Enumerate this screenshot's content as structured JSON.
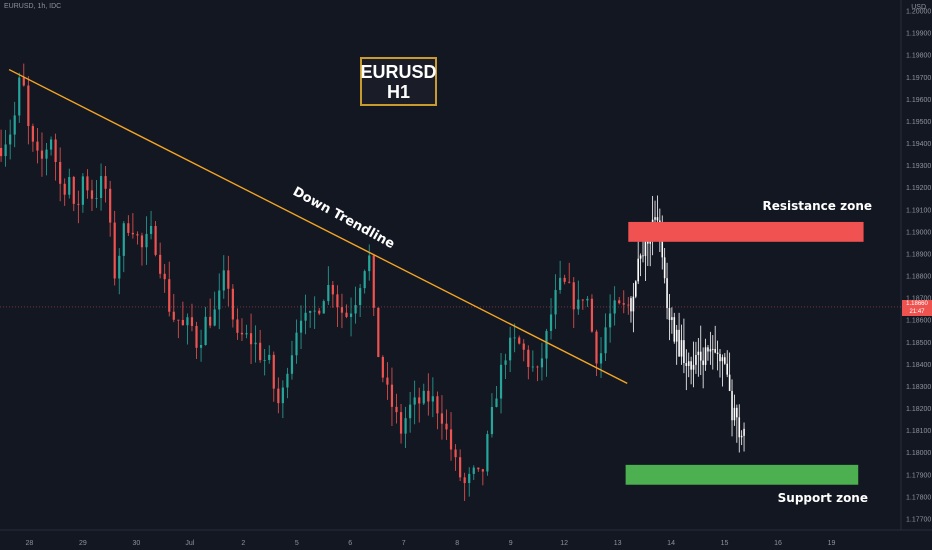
{
  "header": {
    "ticker": "EURUSD, 1h, IDC",
    "axis_unit": "USD"
  },
  "symbol_box": {
    "symbol": "EURUSD",
    "timeframe": "H1"
  },
  "price_tag": {
    "price": "1.18660",
    "countdown": "21:47"
  },
  "annotations": {
    "trendline_label": "Down Trendline",
    "resistance_label": "Resistance zone",
    "support_label": "Support zone"
  },
  "colors": {
    "background": "#131722",
    "bull": "#26a69a",
    "bear": "#ef5350",
    "trendline": "#f5a623",
    "resistance": "#f05252",
    "support": "#4caf50",
    "projection": "#ffffff"
  },
  "chart_data": {
    "type": "candlestick",
    "title": "EURUSD, 1h, IDC",
    "xlabel": "",
    "ylabel": "USD",
    "y_ticks": [
      "1.17700",
      "1.17800",
      "1.17900",
      "1.18000",
      "1.18100",
      "1.18200",
      "1.18300",
      "1.18400",
      "1.18500",
      "1.18600",
      "1.18700",
      "1.18800",
      "1.18900",
      "1.19000",
      "1.19100",
      "1.19200",
      "1.19300",
      "1.19400",
      "1.19500",
      "1.19600",
      "1.19700",
      "1.19800",
      "1.19900",
      "1.20000"
    ],
    "x_ticks": [
      {
        "label": "28",
        "day": 28
      },
      {
        "label": "29",
        "day": 29
      },
      {
        "label": "30",
        "day": 30
      },
      {
        "label": "Jul",
        "day": 31
      },
      {
        "label": "2",
        "day": 32
      },
      {
        "label": "5",
        "day": 33
      },
      {
        "label": "6",
        "day": 34
      },
      {
        "label": "7",
        "day": 35
      },
      {
        "label": "8",
        "day": 36
      },
      {
        "label": "9",
        "day": 37
      },
      {
        "label": "12",
        "day": 38
      },
      {
        "label": "13",
        "day": 39
      },
      {
        "label": "14",
        "day": 40
      },
      {
        "label": "15",
        "day": 41
      },
      {
        "label": "16",
        "day": 42
      },
      {
        "label": "19",
        "day": 43
      }
    ],
    "ylim": [
      1.1765,
      1.2005
    ],
    "xlim": [
      27.45,
      44.3
    ],
    "current_price": 1.1866,
    "price_path": [
      {
        "day": 27.45,
        "price": 1.1938
      },
      {
        "day": 27.7,
        "price": 1.1948
      },
      {
        "day": 27.85,
        "price": 1.1974
      },
      {
        "day": 28.0,
        "price": 1.1942
      },
      {
        "day": 28.2,
        "price": 1.193
      },
      {
        "day": 28.4,
        "price": 1.1944
      },
      {
        "day": 28.6,
        "price": 1.1918
      },
      {
        "day": 28.75,
        "price": 1.1925
      },
      {
        "day": 28.85,
        "price": 1.1905
      },
      {
        "day": 29.0,
        "price": 1.1925
      },
      {
        "day": 29.2,
        "price": 1.1915
      },
      {
        "day": 29.4,
        "price": 1.1925
      },
      {
        "day": 29.6,
        "price": 1.188
      },
      {
        "day": 29.75,
        "price": 1.19
      },
      {
        "day": 29.9,
        "price": 1.1905
      },
      {
        "day": 30.1,
        "price": 1.1892
      },
      {
        "day": 30.3,
        "price": 1.19
      },
      {
        "day": 30.5,
        "price": 1.188
      },
      {
        "day": 30.65,
        "price": 1.1862
      },
      {
        "day": 30.8,
        "price": 1.186
      },
      {
        "day": 30.9,
        "price": 1.1855
      },
      {
        "day": 31.0,
        "price": 1.186
      },
      {
        "day": 31.15,
        "price": 1.1848
      },
      {
        "day": 31.3,
        "price": 1.186
      },
      {
        "day": 31.45,
        "price": 1.1862
      },
      {
        "day": 31.55,
        "price": 1.187
      },
      {
        "day": 31.65,
        "price": 1.188
      },
      {
        "day": 31.75,
        "price": 1.1875
      },
      {
        "day": 31.85,
        "price": 1.185
      },
      {
        "day": 32.0,
        "price": 1.1853
      },
      {
        "day": 32.2,
        "price": 1.185
      },
      {
        "day": 32.35,
        "price": 1.1843
      },
      {
        "day": 32.5,
        "price": 1.184
      },
      {
        "day": 32.6,
        "price": 1.1825
      },
      {
        "day": 32.7,
        "price": 1.182
      },
      {
        "day": 32.8,
        "price": 1.1838
      },
      {
        "day": 32.95,
        "price": 1.185
      },
      {
        "day": 33.05,
        "price": 1.1865
      },
      {
        "day": 33.2,
        "price": 1.1858
      },
      {
        "day": 33.4,
        "price": 1.1866
      },
      {
        "day": 33.5,
        "price": 1.1872
      },
      {
        "day": 33.65,
        "price": 1.1877
      },
      {
        "day": 33.8,
        "price": 1.1865
      },
      {
        "day": 33.95,
        "price": 1.1862
      },
      {
        "day": 34.1,
        "price": 1.187
      },
      {
        "day": 34.25,
        "price": 1.1884
      },
      {
        "day": 34.35,
        "price": 1.189
      },
      {
        "day": 34.4,
        "price": 1.187
      },
      {
        "day": 34.5,
        "price": 1.1848
      },
      {
        "day": 34.65,
        "price": 1.183
      },
      {
        "day": 34.8,
        "price": 1.182
      },
      {
        "day": 34.95,
        "price": 1.181
      },
      {
        "day": 35.1,
        "price": 1.182
      },
      {
        "day": 35.3,
        "price": 1.1823
      },
      {
        "day": 35.5,
        "price": 1.1825
      },
      {
        "day": 35.7,
        "price": 1.1818
      },
      {
        "day": 35.85,
        "price": 1.1805
      },
      {
        "day": 36.0,
        "price": 1.1792
      },
      {
        "day": 36.15,
        "price": 1.1785
      },
      {
        "day": 36.3,
        "price": 1.179
      },
      {
        "day": 36.45,
        "price": 1.1788
      },
      {
        "day": 36.6,
        "price": 1.181
      },
      {
        "day": 36.75,
        "price": 1.183
      },
      {
        "day": 36.9,
        "price": 1.1845
      },
      {
        "day": 37.05,
        "price": 1.185
      },
      {
        "day": 37.2,
        "price": 1.1848
      },
      {
        "day": 37.35,
        "price": 1.184
      },
      {
        "day": 37.5,
        "price": 1.1835
      },
      {
        "day": 37.65,
        "price": 1.185
      },
      {
        "day": 37.8,
        "price": 1.1868
      },
      {
        "day": 37.95,
        "price": 1.1877
      },
      {
        "day": 38.1,
        "price": 1.1873
      },
      {
        "day": 38.25,
        "price": 1.1865
      },
      {
        "day": 38.4,
        "price": 1.1875
      },
      {
        "day": 38.55,
        "price": 1.185
      },
      {
        "day": 38.65,
        "price": 1.184
      },
      {
        "day": 38.8,
        "price": 1.186
      },
      {
        "day": 38.95,
        "price": 1.1865
      },
      {
        "day": 39.15,
        "price": 1.1865
      },
      {
        "day": 39.25,
        "price": 1.1868
      }
    ],
    "series": [
      {
        "name": "",
        "type": "line",
        "points": [
          {
            "day": 27.62,
            "price": 1.19735
          },
          {
            "day": 39.18,
            "price": 1.18314
          }
        ]
      },
      {
        "name": "",
        "type": "zone",
        "x_from": 39.2,
        "x_to": 43.6,
        "price_low": 1.18955,
        "price_high": 1.19045
      },
      {
        "name": "",
        "type": "zone",
        "x_from": 39.15,
        "x_to": 43.5,
        "price_low": 1.17855,
        "price_high": 1.17945
      },
      {
        "name": "",
        "type": "projection",
        "points": [
          {
            "day": 39.25,
            "price": 1.187
          },
          {
            "day": 39.45,
            "price": 1.1888
          },
          {
            "day": 39.6,
            "price": 1.19
          },
          {
            "day": 39.68,
            "price": 1.1912
          },
          {
            "day": 39.75,
            "price": 1.1905
          },
          {
            "day": 39.85,
            "price": 1.1888
          },
          {
            "day": 39.95,
            "price": 1.1862
          },
          {
            "day": 40.1,
            "price": 1.1852
          },
          {
            "day": 40.25,
            "price": 1.1843
          },
          {
            "day": 40.4,
            "price": 1.1838
          },
          {
            "day": 40.6,
            "price": 1.1843
          },
          {
            "day": 40.8,
            "price": 1.1842
          },
          {
            "day": 40.95,
            "price": 1.1846
          },
          {
            "day": 41.0,
            "price": 1.184
          },
          {
            "day": 41.1,
            "price": 1.1823
          },
          {
            "day": 41.2,
            "price": 1.1815
          },
          {
            "day": 41.3,
            "price": 1.1812
          },
          {
            "day": 41.4,
            "price": 1.1808
          }
        ]
      }
    ]
  }
}
